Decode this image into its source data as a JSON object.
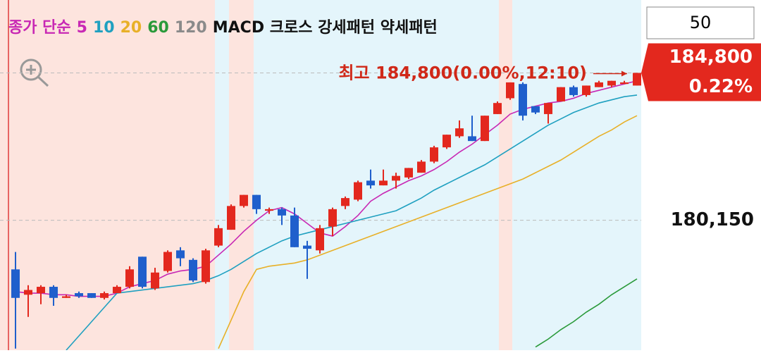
{
  "chart_data": {
    "type": "candlestick",
    "legend_prefix": "종가 단순",
    "pattern_label": "MACD 크로스 강세패턴 약세패턴",
    "period": "50",
    "annotation": "최고 184,800(0.00%,12:10)",
    "current_price": {
      "value": 184800,
      "label": "184,800"
    },
    "change_label": "0.22%",
    "up_color": "#e3281e",
    "down_color": "#1f5fcc",
    "ylim": [
      176050,
      187100
    ],
    "yticks": [
      {
        "value": 180150,
        "label": "180,150"
      }
    ],
    "grid": true,
    "open": [
      178600,
      177800,
      177850,
      178050,
      177700,
      177850,
      177850,
      177700,
      177850,
      178050,
      179000,
      178000,
      178550,
      179200,
      178900,
      178200,
      179350,
      179850,
      180600,
      180950,
      180450,
      180500,
      180300,
      179350,
      179200,
      179950,
      180600,
      180800,
      181400,
      181250,
      181400,
      181500,
      181650,
      182000,
      182450,
      182800,
      182800,
      182650,
      183500,
      184000,
      184450,
      183750,
      183500,
      183900,
      184350,
      184100,
      184350,
      184400,
      184450,
      184400
    ],
    "high": [
      179150,
      178100,
      178100,
      178100,
      177800,
      177900,
      177850,
      177900,
      178100,
      178700,
      179000,
      178650,
      179200,
      179300,
      178950,
      179250,
      180000,
      180650,
      180950,
      180950,
      180550,
      180550,
      180550,
      179500,
      180000,
      180550,
      180900,
      181400,
      181750,
      181750,
      181650,
      181800,
      182050,
      182500,
      182850,
      183300,
      183450,
      183450,
      183900,
      184500,
      184500,
      183750,
      183850,
      184350,
      184400,
      184400,
      184550,
      184550,
      184550,
      184800
    ],
    "low": [
      176100,
      177100,
      177500,
      177450,
      177700,
      177700,
      177700,
      177650,
      177850,
      178000,
      178000,
      177950,
      178500,
      178700,
      178200,
      178150,
      179300,
      179850,
      180550,
      180350,
      180350,
      180000,
      179300,
      178300,
      179100,
      179650,
      180500,
      180750,
      181150,
      181250,
      181150,
      181450,
      181650,
      181950,
      182400,
      182750,
      182650,
      182650,
      183500,
      183950,
      183300,
      183500,
      183200,
      183900,
      184050,
      184050,
      184350,
      184350,
      184450,
      184400
    ],
    "close": [
      177700,
      177950,
      178050,
      177700,
      177750,
      177750,
      177700,
      177850,
      178050,
      178600,
      178050,
      178500,
      179150,
      178950,
      178250,
      179200,
      179900,
      180600,
      180950,
      180500,
      180500,
      180300,
      179300,
      179250,
      179900,
      180500,
      180850,
      181350,
      181250,
      181400,
      181550,
      181800,
      182000,
      182450,
      182850,
      183050,
      182650,
      183450,
      183850,
      184500,
      183450,
      183550,
      183850,
      184350,
      184100,
      184400,
      184500,
      184550,
      184500,
      184800
    ],
    "series": [
      {
        "name": "5",
        "color": "#c828b4",
        "values": [
          177900,
          177850,
          177850,
          177800,
          177800,
          177750,
          177750,
          177750,
          177850,
          178050,
          178150,
          178250,
          178450,
          178550,
          178600,
          178700,
          179050,
          179400,
          179800,
          180150,
          180450,
          180550,
          180350,
          180050,
          179750,
          179650,
          179950,
          180300,
          180750,
          181000,
          181200,
          181400,
          181550,
          181750,
          182000,
          182300,
          182550,
          182850,
          183150,
          183500,
          183650,
          183750,
          183850,
          183900,
          184000,
          184150,
          184250,
          184350,
          184450,
          184550
        ]
      },
      {
        "name": "10",
        "color": "#1fa0c0",
        "values": [
          null,
          null,
          null,
          null,
          176050,
          176500,
          176950,
          177400,
          177850,
          177900,
          177950,
          178000,
          178050,
          178100,
          178150,
          178250,
          178400,
          178600,
          178850,
          179100,
          179300,
          179500,
          179650,
          179750,
          179850,
          179950,
          180050,
          180150,
          180250,
          180350,
          180450,
          180650,
          180850,
          181100,
          181300,
          181500,
          181700,
          181900,
          182150,
          182400,
          182650,
          182900,
          183150,
          183350,
          183550,
          183700,
          183850,
          183950,
          184050,
          184100
        ]
      },
      {
        "name": "20",
        "color": "#e8b028",
        "values": [
          null,
          null,
          null,
          null,
          null,
          null,
          null,
          null,
          null,
          null,
          null,
          null,
          null,
          null,
          null,
          null,
          176100,
          177000,
          177900,
          178600,
          178700,
          178750,
          178800,
          178900,
          179050,
          179200,
          179350,
          179500,
          179650,
          179800,
          179950,
          180100,
          180250,
          180400,
          180550,
          180700,
          180850,
          181000,
          181150,
          181300,
          181450,
          181650,
          181850,
          182050,
          182300,
          182550,
          182800,
          183000,
          183250,
          183450
        ]
      },
      {
        "name": "60",
        "color": "#2a9a3a",
        "values": [
          null,
          null,
          null,
          null,
          null,
          null,
          null,
          null,
          null,
          null,
          null,
          null,
          null,
          null,
          null,
          null,
          null,
          null,
          null,
          null,
          null,
          null,
          null,
          null,
          null,
          null,
          null,
          null,
          null,
          null,
          null,
          null,
          null,
          null,
          null,
          null,
          null,
          null,
          null,
          null,
          null,
          176150,
          176400,
          176700,
          176950,
          177250,
          177500,
          177800,
          178050,
          178300
        ]
      },
      {
        "name": "120",
        "color": "#8a8a8a",
        "values": [
          null,
          null,
          null,
          null,
          null,
          null,
          null,
          null,
          null,
          null,
          null,
          null,
          null,
          null,
          null,
          null,
          null,
          null,
          null,
          null,
          null,
          null,
          null,
          null,
          null,
          null,
          null,
          null,
          null,
          null,
          null,
          null,
          null,
          null,
          null,
          null,
          null,
          null,
          null,
          null,
          null,
          null,
          null,
          null,
          null,
          null,
          null,
          null,
          null,
          null
        ]
      }
    ]
  }
}
